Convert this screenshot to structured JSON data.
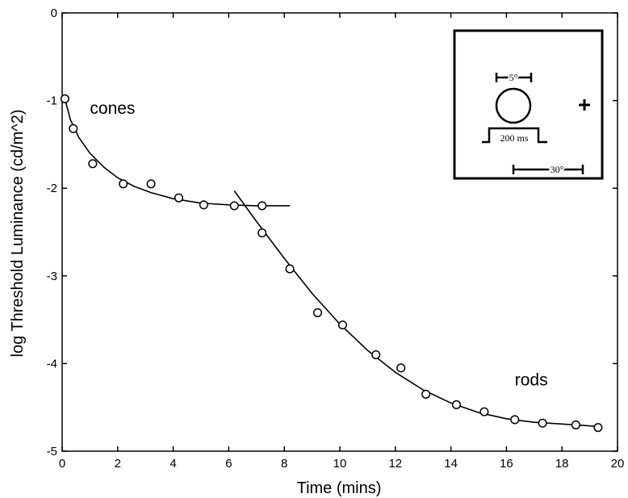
{
  "chart_data": {
    "type": "scatter",
    "xlabel": "Time (mins)",
    "ylabel": "log Threshold Luminance (cd/m^2)",
    "xlim": [
      0,
      20
    ],
    "ylim": [
      -5,
      0
    ],
    "x_ticks": [
      "0",
      "2",
      "4",
      "6",
      "8",
      "10",
      "12",
      "14",
      "16",
      "18",
      "20"
    ],
    "y_ticks": [
      "0",
      "-1",
      "-2",
      "-3",
      "-4",
      "-5"
    ],
    "grid": false,
    "series": [
      {
        "name": "",
        "marker": "open-circle",
        "points": [
          [
            0.1,
            -0.98
          ],
          [
            0.4,
            -1.32
          ],
          [
            1.1,
            -1.72
          ],
          [
            2.2,
            -1.95
          ],
          [
            3.2,
            -1.95
          ],
          [
            4.2,
            -2.11
          ],
          [
            5.1,
            -2.19
          ],
          [
            6.2,
            -2.2
          ],
          [
            7.2,
            -2.2
          ],
          [
            7.2,
            -2.51
          ],
          [
            8.2,
            -2.92
          ],
          [
            9.2,
            -3.42
          ],
          [
            10.1,
            -3.56
          ],
          [
            11.3,
            -3.9
          ],
          [
            12.2,
            -4.05
          ],
          [
            13.1,
            -4.35
          ],
          [
            14.2,
            -4.47
          ],
          [
            15.2,
            -4.55
          ],
          [
            16.3,
            -4.64
          ],
          [
            17.3,
            -4.68
          ],
          [
            18.5,
            -4.7
          ],
          [
            19.3,
            -4.73
          ]
        ]
      }
    ],
    "fits": [
      {
        "name": "cone fit",
        "points": [
          [
            0.1,
            -0.98
          ],
          [
            0.3,
            -1.22
          ],
          [
            0.6,
            -1.42
          ],
          [
            1.0,
            -1.6
          ],
          [
            1.5,
            -1.76
          ],
          [
            2.0,
            -1.88
          ],
          [
            2.6,
            -1.98
          ],
          [
            3.2,
            -2.05
          ],
          [
            4.0,
            -2.12
          ],
          [
            5.0,
            -2.17
          ],
          [
            6.0,
            -2.19
          ],
          [
            7.0,
            -2.2
          ],
          [
            8.2,
            -2.2
          ]
        ]
      },
      {
        "name": "rod fit",
        "points": [
          [
            6.2,
            -2.03
          ],
          [
            7.0,
            -2.38
          ],
          [
            8.0,
            -2.8
          ],
          [
            9.0,
            -3.2
          ],
          [
            10.0,
            -3.55
          ],
          [
            11.0,
            -3.85
          ],
          [
            12.0,
            -4.1
          ],
          [
            13.0,
            -4.3
          ],
          [
            14.0,
            -4.45
          ],
          [
            15.0,
            -4.56
          ],
          [
            16.0,
            -4.63
          ],
          [
            17.0,
            -4.67
          ],
          [
            18.0,
            -4.69
          ],
          [
            19.4,
            -4.72
          ]
        ]
      }
    ],
    "annotations": [
      {
        "text": "cones",
        "x": 1.0,
        "y": -1.15
      },
      {
        "text": "rods",
        "x": 16.3,
        "y": -4.25
      }
    ],
    "inset": {
      "size_label": "5°",
      "duration_label": "200 ms",
      "eccentricity_label": "30°"
    }
  }
}
